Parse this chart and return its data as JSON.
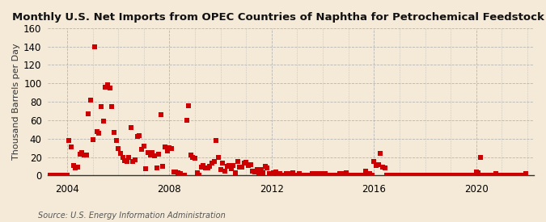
{
  "title": "Monthly U.S. Net Imports from OPEC Countries of Naphtha for Petrochemical Feedstock Use",
  "ylabel": "Thousand Barrels per Day",
  "source": "Source: U.S. Energy Information Administration",
  "background_color": "#f5ead8",
  "plot_bg_color": "#f5ead8",
  "marker_color": "#cc0000",
  "marker": "s",
  "marker_size": 4,
  "ylim": [
    0,
    160
  ],
  "yticks": [
    0,
    20,
    40,
    60,
    80,
    100,
    120,
    140,
    160
  ],
  "xticks": [
    2004,
    2008,
    2012,
    2016,
    2020
  ],
  "xlim": [
    2003.25,
    2022.25
  ],
  "data": [
    [
      2003.25,
      0
    ],
    [
      2003.33,
      0
    ],
    [
      2003.42,
      0
    ],
    [
      2003.5,
      0
    ],
    [
      2003.58,
      0
    ],
    [
      2003.67,
      0
    ],
    [
      2003.75,
      0
    ],
    [
      2003.83,
      0
    ],
    [
      2003.92,
      0
    ],
    [
      2004.0,
      0
    ],
    [
      2004.08,
      38
    ],
    [
      2004.17,
      31
    ],
    [
      2004.25,
      11
    ],
    [
      2004.33,
      8
    ],
    [
      2004.42,
      9
    ],
    [
      2004.5,
      23
    ],
    [
      2004.58,
      25
    ],
    [
      2004.67,
      22
    ],
    [
      2004.75,
      22
    ],
    [
      2004.83,
      67
    ],
    [
      2004.92,
      82
    ],
    [
      2005.0,
      39
    ],
    [
      2005.08,
      140
    ],
    [
      2005.17,
      48
    ],
    [
      2005.25,
      46
    ],
    [
      2005.33,
      75
    ],
    [
      2005.42,
      59
    ],
    [
      2005.5,
      96
    ],
    [
      2005.58,
      98
    ],
    [
      2005.67,
      95
    ],
    [
      2005.75,
      75
    ],
    [
      2005.83,
      47
    ],
    [
      2005.92,
      38
    ],
    [
      2006.0,
      29
    ],
    [
      2006.08,
      24
    ],
    [
      2006.17,
      20
    ],
    [
      2006.25,
      16
    ],
    [
      2006.33,
      15
    ],
    [
      2006.42,
      20
    ],
    [
      2006.5,
      52
    ],
    [
      2006.58,
      15
    ],
    [
      2006.67,
      17
    ],
    [
      2006.75,
      42
    ],
    [
      2006.83,
      43
    ],
    [
      2006.92,
      28
    ],
    [
      2007.0,
      32
    ],
    [
      2007.08,
      7
    ],
    [
      2007.17,
      25
    ],
    [
      2007.25,
      22
    ],
    [
      2007.33,
      25
    ],
    [
      2007.42,
      21
    ],
    [
      2007.5,
      8
    ],
    [
      2007.58,
      23
    ],
    [
      2007.67,
      66
    ],
    [
      2007.75,
      10
    ],
    [
      2007.83,
      31
    ],
    [
      2007.92,
      27
    ],
    [
      2008.0,
      30
    ],
    [
      2008.08,
      29
    ],
    [
      2008.17,
      4
    ],
    [
      2008.25,
      4
    ],
    [
      2008.33,
      3
    ],
    [
      2008.42,
      2
    ],
    [
      2008.5,
      0
    ],
    [
      2008.58,
      0
    ],
    [
      2008.67,
      60
    ],
    [
      2008.75,
      76
    ],
    [
      2008.83,
      22
    ],
    [
      2008.92,
      20
    ],
    [
      2009.0,
      19
    ],
    [
      2009.08,
      3
    ],
    [
      2009.17,
      0
    ],
    [
      2009.25,
      9
    ],
    [
      2009.33,
      11
    ],
    [
      2009.42,
      8
    ],
    [
      2009.5,
      8
    ],
    [
      2009.58,
      10
    ],
    [
      2009.67,
      13
    ],
    [
      2009.75,
      15
    ],
    [
      2009.83,
      38
    ],
    [
      2009.92,
      20
    ],
    [
      2010.0,
      6
    ],
    [
      2010.08,
      13
    ],
    [
      2010.17,
      5
    ],
    [
      2010.25,
      10
    ],
    [
      2010.33,
      11
    ],
    [
      2010.42,
      7
    ],
    [
      2010.5,
      11
    ],
    [
      2010.58,
      3
    ],
    [
      2010.67,
      15
    ],
    [
      2010.75,
      9
    ],
    [
      2010.83,
      9
    ],
    [
      2010.92,
      13
    ],
    [
      2011.0,
      14
    ],
    [
      2011.08,
      11
    ],
    [
      2011.17,
      12
    ],
    [
      2011.25,
      5
    ],
    [
      2011.33,
      4
    ],
    [
      2011.42,
      6
    ],
    [
      2011.5,
      3
    ],
    [
      2011.58,
      6
    ],
    [
      2011.67,
      3
    ],
    [
      2011.75,
      10
    ],
    [
      2011.83,
      8
    ],
    [
      2011.92,
      2
    ],
    [
      2012.0,
      0
    ],
    [
      2012.08,
      3
    ],
    [
      2012.17,
      4
    ],
    [
      2012.25,
      2
    ],
    [
      2012.33,
      2
    ],
    [
      2012.42,
      0
    ],
    [
      2012.5,
      0
    ],
    [
      2012.58,
      2
    ],
    [
      2012.67,
      2
    ],
    [
      2012.75,
      2
    ],
    [
      2012.83,
      3
    ],
    [
      2012.92,
      0
    ],
    [
      2013.0,
      0
    ],
    [
      2013.08,
      2
    ],
    [
      2013.17,
      0
    ],
    [
      2013.25,
      0
    ],
    [
      2013.33,
      0
    ],
    [
      2013.42,
      0
    ],
    [
      2013.5,
      0
    ],
    [
      2013.58,
      2
    ],
    [
      2013.67,
      2
    ],
    [
      2013.75,
      0
    ],
    [
      2013.83,
      2
    ],
    [
      2013.92,
      2
    ],
    [
      2014.0,
      0
    ],
    [
      2014.08,
      2
    ],
    [
      2014.17,
      0
    ],
    [
      2014.25,
      0
    ],
    [
      2014.33,
      0
    ],
    [
      2014.42,
      0
    ],
    [
      2014.5,
      0
    ],
    [
      2014.58,
      0
    ],
    [
      2014.67,
      2
    ],
    [
      2014.75,
      2
    ],
    [
      2014.83,
      0
    ],
    [
      2014.92,
      3
    ],
    [
      2015.0,
      0
    ],
    [
      2015.08,
      0
    ],
    [
      2015.17,
      0
    ],
    [
      2015.25,
      0
    ],
    [
      2015.33,
      0
    ],
    [
      2015.42,
      0
    ],
    [
      2015.5,
      0
    ],
    [
      2015.58,
      0
    ],
    [
      2015.67,
      5
    ],
    [
      2015.75,
      0
    ],
    [
      2015.83,
      2
    ],
    [
      2015.92,
      0
    ],
    [
      2016.0,
      15
    ],
    [
      2016.08,
      11
    ],
    [
      2016.17,
      12
    ],
    [
      2016.25,
      24
    ],
    [
      2016.33,
      9
    ],
    [
      2016.42,
      8
    ],
    [
      2016.5,
      0
    ],
    [
      2016.58,
      0
    ],
    [
      2016.67,
      0
    ],
    [
      2016.75,
      0
    ],
    [
      2016.83,
      0
    ],
    [
      2016.92,
      0
    ],
    [
      2017.0,
      0
    ],
    [
      2017.08,
      0
    ],
    [
      2017.17,
      0
    ],
    [
      2017.25,
      0
    ],
    [
      2017.33,
      0
    ],
    [
      2017.42,
      0
    ],
    [
      2017.5,
      0
    ],
    [
      2017.58,
      0
    ],
    [
      2017.67,
      0
    ],
    [
      2017.75,
      0
    ],
    [
      2017.83,
      0
    ],
    [
      2017.92,
      0
    ],
    [
      2018.0,
      0
    ],
    [
      2018.08,
      0
    ],
    [
      2018.17,
      0
    ],
    [
      2018.25,
      0
    ],
    [
      2018.33,
      0
    ],
    [
      2018.42,
      0
    ],
    [
      2018.5,
      0
    ],
    [
      2018.58,
      0
    ],
    [
      2018.67,
      0
    ],
    [
      2018.75,
      0
    ],
    [
      2018.83,
      0
    ],
    [
      2018.92,
      0
    ],
    [
      2019.0,
      0
    ],
    [
      2019.08,
      0
    ],
    [
      2019.17,
      0
    ],
    [
      2019.25,
      0
    ],
    [
      2019.33,
      0
    ],
    [
      2019.42,
      0
    ],
    [
      2019.5,
      0
    ],
    [
      2019.58,
      0
    ],
    [
      2019.67,
      0
    ],
    [
      2019.75,
      0
    ],
    [
      2019.83,
      0
    ],
    [
      2019.92,
      0
    ],
    [
      2020.0,
      4
    ],
    [
      2020.08,
      3
    ],
    [
      2020.17,
      20
    ],
    [
      2020.25,
      0
    ],
    [
      2020.33,
      0
    ],
    [
      2020.42,
      0
    ],
    [
      2020.5,
      0
    ],
    [
      2020.58,
      0
    ],
    [
      2020.67,
      0
    ],
    [
      2020.75,
      2
    ],
    [
      2020.83,
      0
    ],
    [
      2020.92,
      0
    ],
    [
      2021.0,
      0
    ],
    [
      2021.08,
      0
    ],
    [
      2021.17,
      0
    ],
    [
      2021.25,
      0
    ],
    [
      2021.33,
      0
    ],
    [
      2021.42,
      0
    ],
    [
      2021.5,
      0
    ],
    [
      2021.58,
      0
    ],
    [
      2021.67,
      0
    ],
    [
      2021.75,
      0
    ],
    [
      2021.83,
      0
    ],
    [
      2021.92,
      2
    ]
  ]
}
